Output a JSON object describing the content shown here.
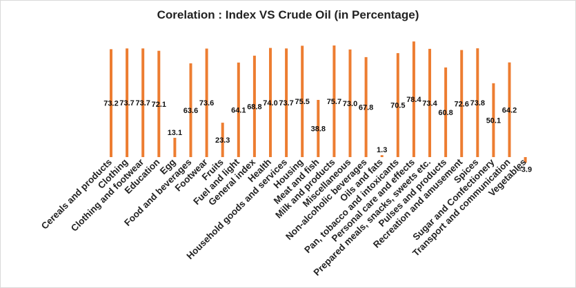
{
  "chart_data": {
    "type": "bar",
    "title": "Corelation : Index VS Crude Oil (in Percentage)",
    "categories": [
      "Cereals and products",
      "Clothing",
      "Clothing and footwear",
      "Education",
      "Egg",
      "Food and beverages",
      "Footwear",
      "Fruits",
      "Fuel and light",
      "General index",
      "Health",
      "Household goods and services",
      "Housing",
      "Meat and fish",
      "Milk and products",
      "Miscellaneous",
      "Non-alcoholic beverages",
      "Oils and fats",
      "Pan, tobacco and intoxicants",
      "Personal care and effects",
      "Prepared meals, snacks, sweets etc.",
      "Pulses and products",
      "Recreation and amusement",
      "Spices",
      "Sugar and Confectionery",
      "Transport and communication",
      "Vegetables"
    ],
    "values": [
      73.2,
      73.7,
      73.7,
      72.1,
      13.1,
      63.6,
      73.6,
      23.3,
      64.1,
      68.8,
      74.0,
      73.7,
      75.5,
      38.8,
      75.7,
      73.0,
      67.8,
      1.3,
      70.5,
      78.4,
      73.4,
      60.8,
      72.6,
      73.8,
      50.1,
      64.2,
      -3.9
    ],
    "labels": [
      "73.2",
      "73.7",
      "73.7",
      "72.1",
      "13.1",
      "63.6",
      "73.6",
      "23.3",
      "64.1",
      "68.8",
      "74.0",
      "73.7",
      "75.5",
      "38.8",
      "75.7",
      "73.0",
      "67.8",
      "1.3",
      "70.5",
      "78.4",
      "73.4",
      "60.8",
      "72.6",
      "73.8",
      "50.1",
      "64.2",
      "-3.9"
    ],
    "series_color": "#ED7D31",
    "grid": false,
    "legend": "none"
  }
}
